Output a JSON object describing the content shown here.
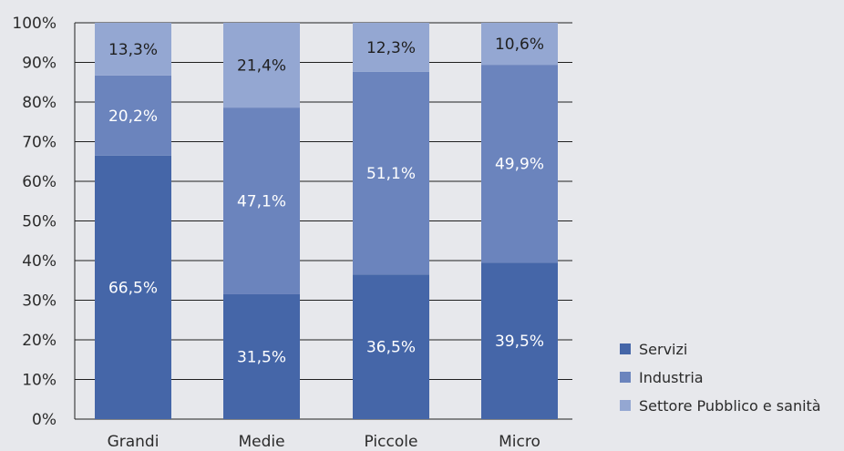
{
  "chart_data": {
    "type": "bar",
    "stacked": true,
    "categories": [
      "Grandi",
      "Medie",
      "Piccole",
      "Micro"
    ],
    "series": [
      {
        "name": "Servizi",
        "values": [
          66.5,
          31.5,
          36.5,
          39.5
        ],
        "labels": [
          "66,5%",
          "31,5%",
          "36,5%",
          "39,5%"
        ],
        "color": "#4566a8",
        "label_color": "#ffffff"
      },
      {
        "name": "Industria",
        "values": [
          20.2,
          47.1,
          51.1,
          49.9
        ],
        "labels": [
          "20,2%",
          "47,1%",
          "51,1%",
          "49,9%"
        ],
        "color": "#6b84bd",
        "label_color": "#ffffff"
      },
      {
        "name": "Settore Pubblico e sanità",
        "values": [
          13.3,
          21.4,
          12.3,
          10.6
        ],
        "labels": [
          "13,3%",
          "21,4%",
          "12,3%",
          "10,6%"
        ],
        "color": "#94a7d2",
        "label_color": "#1f1f1f"
      }
    ],
    "yticks": [
      "0%",
      "10%",
      "20%",
      "30%",
      "40%",
      "50%",
      "60%",
      "70%",
      "80%",
      "90%",
      "100%"
    ],
    "ylim": [
      0,
      100
    ],
    "grid": true,
    "legend_position": "bottom-right",
    "title": "",
    "xlabel": "",
    "ylabel": ""
  }
}
